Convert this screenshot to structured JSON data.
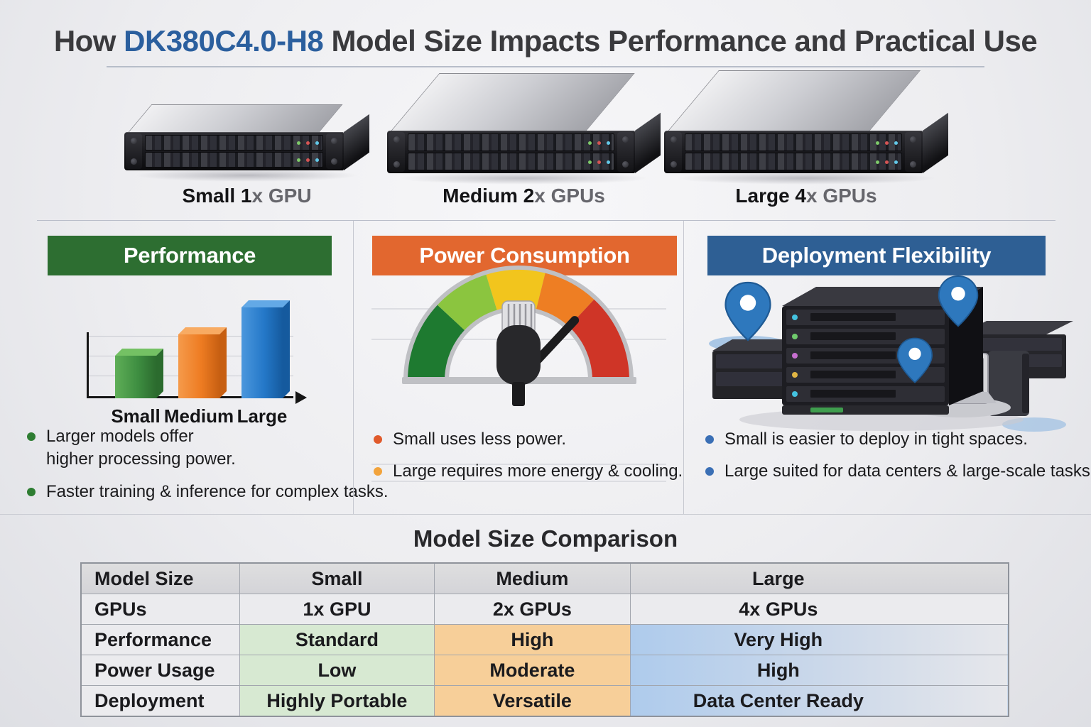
{
  "title": {
    "prefix": "How ",
    "model": "DK380C4.0-H8",
    "suffix": " Model Size Impacts Performance and Practical Use",
    "model_color": "#2b5f9e"
  },
  "servers": [
    {
      "strong": "Small 1",
      "light": "x GPU"
    },
    {
      "strong": "Medium 2",
      "light": "x GPUs"
    },
    {
      "strong": "Large 4",
      "light": "x GPUs"
    }
  ],
  "sections": [
    {
      "title": "Performance",
      "color": "#2d6e31",
      "bullets": [
        {
          "text": "Larger models offer\nhigher processing power.",
          "color": "#2e7d32"
        },
        {
          "text": "Faster training & inference for complex tasks.",
          "color": "#2e7d32"
        }
      ]
    },
    {
      "title": "Power Consumption",
      "color": "#e2672f",
      "bullets": [
        {
          "text": "Small uses less power.",
          "color": "#e05a2b"
        },
        {
          "text": "Large requires more energy & cooling.",
          "color": "#f2a33c"
        }
      ]
    },
    {
      "title": "Deployment Flexibility",
      "color": "#2e5f94",
      "bullets": [
        {
          "text": "Small is easier to deploy in tight spaces.",
          "color": "#3a6fb5"
        },
        {
          "text": "Large suited for data centers & large-scale tasks.",
          "color": "#3a6fb5"
        }
      ]
    }
  ],
  "chart_data": {
    "type": "bar",
    "title": "Performance",
    "categories": [
      "Small",
      "Medium",
      "Large"
    ],
    "values": [
      40,
      60,
      85
    ],
    "ylim": [
      0,
      100
    ],
    "grid": true,
    "legend": false,
    "bar_colors": [
      {
        "light": "#5fae57",
        "base": "#3e8e41",
        "dark": "#2b6b2e",
        "top": "#74c164"
      },
      {
        "light": "#f59a4b",
        "base": "#ee7c22",
        "dark": "#c75f12",
        "top": "#f8ab63"
      },
      {
        "light": "#4b97dd",
        "base": "#2478c8",
        "dark": "#155a9e",
        "top": "#63a9e6"
      }
    ]
  },
  "gauge": {
    "frame_color": "#bfc0c4",
    "segments": [
      {
        "from": 180,
        "to": 137,
        "color": "#1e7a30"
      },
      {
        "from": 137,
        "to": 107,
        "color": "#8bc53f"
      },
      {
        "from": 107,
        "to": 76,
        "color": "#f2c51d"
      },
      {
        "from": 76,
        "to": 47,
        "color": "#ee7e23"
      },
      {
        "from": 47,
        "to": 0,
        "color": "#cf3527"
      }
    ],
    "needle_angle_deg": 47
  },
  "comparison": {
    "title": "Model Size Comparison",
    "columns": [
      "Model Size",
      "Small",
      "Medium",
      "Large"
    ],
    "rows": [
      {
        "label": "GPUs",
        "cells": [
          "1x GPU",
          "2x GPUs",
          "4x GPUs"
        ],
        "tinted": false
      },
      {
        "label": "Performance",
        "cells": [
          "Standard",
          "High",
          "Very High"
        ],
        "tinted": true
      },
      {
        "label": "Power Usage",
        "cells": [
          "Low",
          "Moderate",
          "High"
        ],
        "tinted": true
      },
      {
        "label": "Deployment",
        "cells": [
          "Highly Portable",
          "Versatile",
          "Data Center Ready"
        ],
        "tinted": true
      }
    ],
    "tints": [
      "#d7e9d2",
      "#f7cf99",
      "#aecbec"
    ]
  }
}
